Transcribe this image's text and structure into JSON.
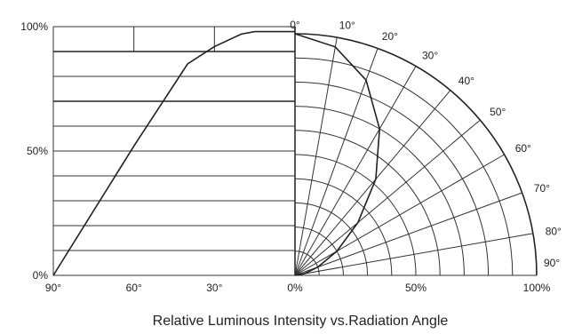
{
  "chart_data": [
    {
      "type": "line",
      "title": "Relative Luminous Intensity vs.Radiation Angle",
      "xlabel": "",
      "ylabel": "",
      "x_ticks": [
        "90°",
        "60°",
        "30°",
        "0%"
      ],
      "y_ticks": [
        "100%",
        "50%",
        "0%"
      ],
      "xlim": [
        90,
        0
      ],
      "ylim": [
        0,
        100
      ],
      "grid": true,
      "series": [
        {
          "x": [
            90,
            60,
            40,
            30,
            20,
            15,
            0
          ],
          "y": [
            0,
            52,
            85,
            92,
            97,
            98,
            98
          ]
        }
      ]
    },
    {
      "type": "polar",
      "angle_labels": [
        "0°",
        "10°",
        "20°",
        "30°",
        "40°",
        "50°",
        "60°",
        "70°",
        "80°",
        "90°"
      ],
      "radial_labels": [
        "0%",
        "50%",
        "100%"
      ],
      "angles_deg": [
        0,
        10,
        20,
        30,
        40,
        50,
        60,
        70,
        80,
        90
      ],
      "radii_pct": [
        10,
        20,
        30,
        40,
        50,
        60,
        70,
        80,
        90,
        100
      ],
      "series": [
        {
          "angle": [
            0,
            10,
            20,
            30,
            40,
            50,
            60,
            70,
            80,
            90
          ],
          "r": [
            100,
            96,
            86,
            70,
            52,
            34,
            20,
            10,
            4,
            0
          ]
        }
      ]
    }
  ]
}
